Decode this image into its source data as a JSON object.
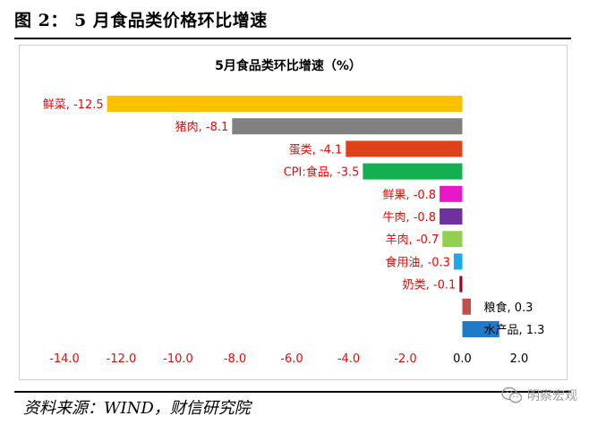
{
  "figure": {
    "title": "图 2：  5 月食品类价格环比增速",
    "source": "资料来源：WIND，财信研究院",
    "watermark": "明察宏观"
  },
  "chart_data": {
    "type": "bar",
    "orientation": "horizontal",
    "title": "5月食品类环比增速（%）",
    "categories": [
      "鲜菜",
      "猪肉",
      "蛋类",
      "CPI:食品",
      "鲜果",
      "牛肉",
      "羊肉",
      "食用油",
      "奶类",
      "粮食",
      "水产品"
    ],
    "values": [
      -12.5,
      -8.1,
      -4.1,
      -3.5,
      -0.8,
      -0.8,
      -0.7,
      -0.3,
      -0.1,
      0.3,
      1.3
    ],
    "data_labels": [
      "鲜菜, -12.5",
      "猪肉, -8.1",
      "蛋类, -4.1",
      "CPI:食品, -3.5",
      "鲜果, -0.8",
      "牛肉, -0.8",
      "羊肉, -0.7",
      "食用油, -0.3",
      "奶类, -0.1",
      "粮食, 0.3",
      "水产品, 1.3"
    ],
    "colors": [
      "#FFC000",
      "#808080",
      "#E0401A",
      "#12B050",
      "#E817C8",
      "#7030A0",
      "#92D050",
      "#1CA8F0",
      "#A50021",
      "#C0504D",
      "#1F7BC8"
    ],
    "xlim": [
      -14.0,
      2.0
    ],
    "xticks": [
      -14.0,
      -12.0,
      -10.0,
      -8.0,
      -6.0,
      -4.0,
      -2.0,
      0.0,
      2.0
    ],
    "xtick_labels": [
      "-14.0",
      "-12.0",
      "-10.0",
      "-8.0",
      "-6.0",
      "-4.0",
      "-2.0",
      "0.0",
      "2.0"
    ],
    "tick_label_colors": {
      "negative": "#FF0000",
      "non_negative": "#000000"
    },
    "label_colors": {
      "negative": "#FF0000",
      "positive": "#000000"
    },
    "xlabel": "",
    "ylabel": "",
    "grid": false,
    "legend": "none"
  }
}
